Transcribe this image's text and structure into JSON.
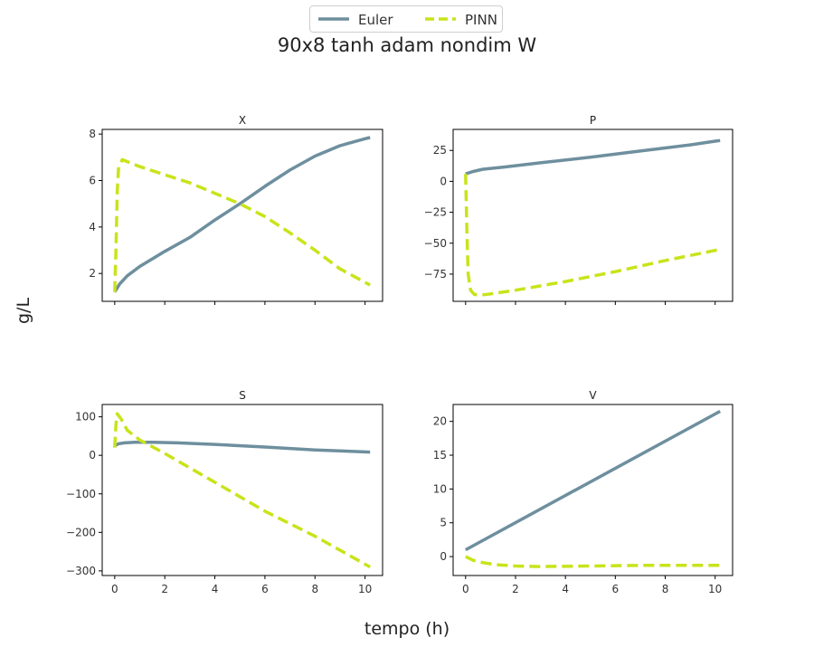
{
  "suptitle": "90x8 tanh adam nondim W",
  "supxlabel": "tempo (h)",
  "supylabel": "g/L",
  "legend": {
    "placement": "top-center",
    "entries": [
      "Euler",
      "PINN"
    ]
  },
  "colors": {
    "euler": "#6e8f9e",
    "pinn": "#c9e31a",
    "axis": "#000000"
  },
  "chart_data": [
    {
      "type": "line",
      "title": "X",
      "xlim": [
        -0.5,
        10.7
      ],
      "ylim": [
        0.8,
        8.2
      ],
      "yticks": [
        2,
        4,
        6,
        8
      ],
      "xticks": [
        0,
        2,
        4,
        6,
        8,
        10
      ],
      "show_xticklabels": false,
      "series": [
        {
          "name": "Euler",
          "style": "solid",
          "x": [
            0,
            0.2,
            0.5,
            1,
            2,
            3,
            4,
            5,
            6,
            7,
            8,
            9,
            10,
            10.2
          ],
          "y": [
            1.2,
            1.55,
            1.9,
            2.3,
            2.95,
            3.55,
            4.3,
            5.0,
            5.75,
            6.45,
            7.05,
            7.5,
            7.8,
            7.85
          ]
        },
        {
          "name": "PINN",
          "style": "dashed",
          "x": [
            0,
            0.05,
            0.1,
            0.15,
            0.3,
            1,
            2,
            3,
            4,
            5,
            6,
            7,
            8,
            9,
            10.2
          ],
          "y": [
            1.2,
            3.0,
            5.5,
            6.5,
            6.9,
            6.6,
            6.25,
            5.9,
            5.45,
            5.0,
            4.45,
            3.75,
            3.0,
            2.2,
            1.5
          ]
        }
      ]
    },
    {
      "type": "line",
      "title": "P",
      "xlim": [
        -0.5,
        10.7
      ],
      "ylim": [
        -97,
        42
      ],
      "yticks": [
        25,
        0,
        -25,
        -50,
        -75
      ],
      "xticks": [
        0,
        2,
        4,
        6,
        8,
        10
      ],
      "show_xticklabels": false,
      "series": [
        {
          "name": "Euler",
          "style": "solid",
          "x": [
            0,
            0.3,
            0.7,
            1.5,
            3,
            5,
            7,
            8,
            9,
            10,
            10.2
          ],
          "y": [
            6,
            8,
            9.8,
            11.5,
            15,
            19.5,
            24.5,
            27,
            29.5,
            32.5,
            33
          ]
        },
        {
          "name": "PINN",
          "style": "dashed",
          "x": [
            0,
            0.05,
            0.1,
            0.2,
            0.35,
            0.6,
            1,
            2,
            4,
            6,
            8,
            10.2
          ],
          "y": [
            6,
            -40,
            -75,
            -88,
            -91.5,
            -92,
            -91,
            -88,
            -81,
            -73,
            -64,
            -55
          ]
        }
      ]
    },
    {
      "type": "line",
      "title": "S",
      "xlim": [
        -0.5,
        10.7
      ],
      "ylim": [
        -312,
        132
      ],
      "yticks": [
        100,
        0,
        -100,
        -200,
        -300
      ],
      "xticks": [
        0,
        2,
        4,
        6,
        8,
        10
      ],
      "show_xticklabels": true,
      "series": [
        {
          "name": "Euler",
          "style": "solid",
          "x": [
            0,
            0.15,
            0.4,
            0.8,
            1.5,
            2.5,
            4,
            6,
            8,
            10,
            10.2
          ],
          "y": [
            25,
            30,
            32.5,
            34,
            34,
            32.5,
            28.5,
            21.5,
            14,
            9,
            8.5
          ]
        },
        {
          "name": "PINN",
          "style": "dashed",
          "x": [
            0,
            0.05,
            0.1,
            0.25,
            0.5,
            1,
            2,
            4,
            6,
            8,
            10.2
          ],
          "y": [
            20,
            80,
            108,
            95,
            65,
            40,
            5,
            -70,
            -145,
            -210,
            -290
          ]
        }
      ]
    },
    {
      "type": "line",
      "title": "V",
      "xlim": [
        -0.5,
        10.7
      ],
      "ylim": [
        -2.8,
        22.5
      ],
      "yticks": [
        0,
        5,
        10,
        15,
        20
      ],
      "xticks": [
        0,
        2,
        4,
        6,
        8,
        10
      ],
      "show_xticklabels": true,
      "series": [
        {
          "name": "Euler",
          "style": "solid",
          "x": [
            0,
            10.2
          ],
          "y": [
            1.0,
            21.5
          ]
        },
        {
          "name": "PINN",
          "style": "dashed",
          "x": [
            0,
            0.3,
            0.7,
            1.2,
            2,
            3,
            5,
            7,
            9,
            10.2
          ],
          "y": [
            0,
            -0.55,
            -0.9,
            -1.2,
            -1.4,
            -1.48,
            -1.4,
            -1.3,
            -1.3,
            -1.3
          ]
        }
      ]
    }
  ]
}
